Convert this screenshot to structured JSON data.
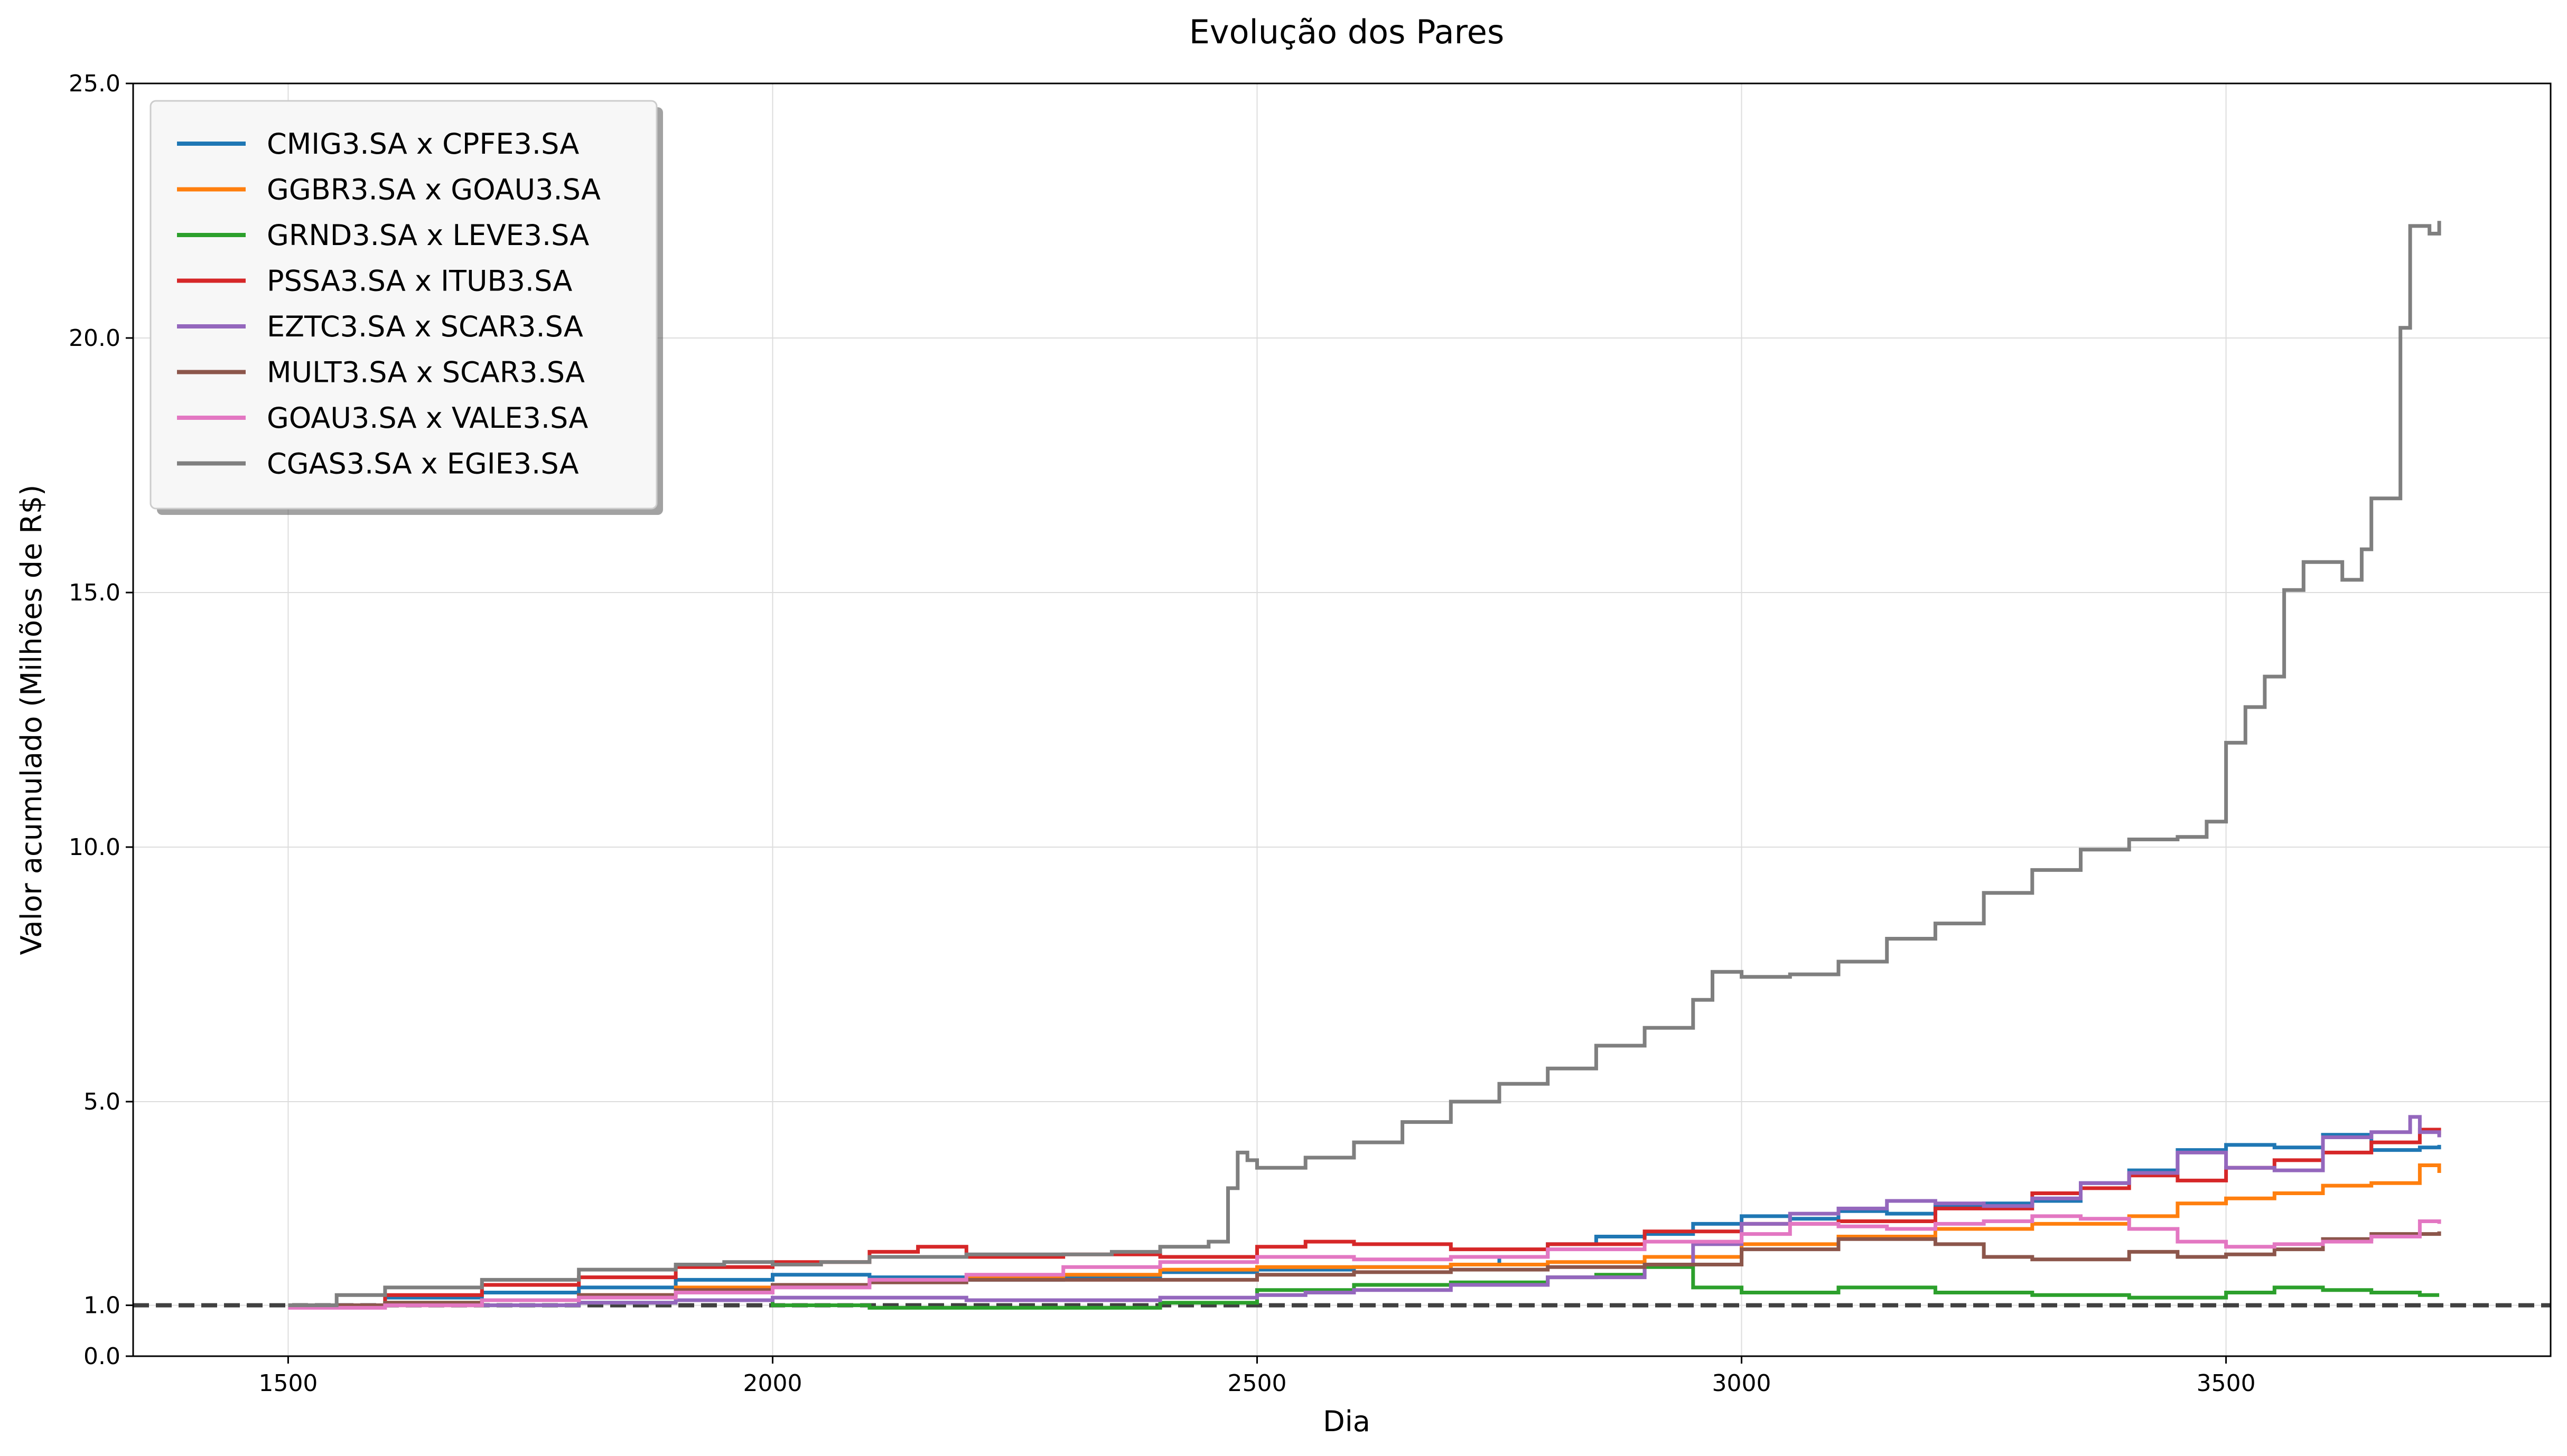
{
  "chart_data": {
    "type": "line",
    "title": "Evolução dos Pares",
    "xlabel": "Dia",
    "ylabel": "Valor acumulado (Milhões de R$)",
    "xlim": [
      1340,
      3835
    ],
    "ylim": [
      0,
      25
    ],
    "xticks": [
      1500,
      2000,
      2500,
      3000,
      3500
    ],
    "xtick_labels": [
      "1500",
      "2000",
      "2500",
      "3000",
      "3500"
    ],
    "yticks": [
      0,
      1,
      5,
      10,
      15,
      20,
      25
    ],
    "ytick_labels": [
      "0.0",
      "1.0",
      "5.0",
      "10.0",
      "15.0",
      "20.0",
      "25.0"
    ],
    "grid": true,
    "legend_position": "top-left",
    "reference_line": {
      "y": 1.0,
      "style": "dashed",
      "color": "#404040"
    },
    "series": [
      {
        "name": "CMIG3.SA x CPFE3.SA",
        "color": "#1f77b4",
        "x": [
          1500,
          1600,
          1700,
          1800,
          1900,
          2000,
          2100,
          2200,
          2300,
          2400,
          2500,
          2600,
          2700,
          2750,
          2800,
          2850,
          2900,
          2950,
          3000,
          3050,
          3100,
          3150,
          3200,
          3250,
          3300,
          3350,
          3400,
          3450,
          3500,
          3550,
          3600,
          3650,
          3700,
          3720
        ],
        "y": [
          1.0,
          1.15,
          1.25,
          1.35,
          1.5,
          1.6,
          1.55,
          1.5,
          1.55,
          1.65,
          1.7,
          1.75,
          1.8,
          1.95,
          2.2,
          2.35,
          2.4,
          2.6,
          2.75,
          2.7,
          2.85,
          2.8,
          2.95,
          3.0,
          3.05,
          3.4,
          3.65,
          4.05,
          4.15,
          4.1,
          4.35,
          4.05,
          4.1,
          4.15
        ]
      },
      {
        "name": "GGBR3.SA x GOAU3.SA",
        "color": "#ff7f0e",
        "x": [
          1500,
          1600,
          1700,
          1800,
          1900,
          2000,
          2100,
          2200,
          2300,
          2400,
          2500,
          2600,
          2700,
          2800,
          2900,
          3000,
          3100,
          3200,
          3300,
          3400,
          3450,
          3500,
          3550,
          3600,
          3650,
          3700,
          3720
        ],
        "y": [
          1.0,
          1.0,
          1.1,
          1.2,
          1.35,
          1.4,
          1.5,
          1.55,
          1.6,
          1.7,
          1.75,
          1.75,
          1.8,
          1.85,
          1.95,
          2.2,
          2.35,
          2.5,
          2.6,
          2.75,
          3.0,
          3.1,
          3.2,
          3.35,
          3.4,
          3.75,
          3.6
        ]
      },
      {
        "name": "GRND3.SA x LEVE3.SA",
        "color": "#2ca02c",
        "x": [
          1500,
          1600,
          1700,
          1800,
          1900,
          2000,
          2100,
          2200,
          2300,
          2400,
          2500,
          2600,
          2700,
          2800,
          2850,
          2900,
          2950,
          3000,
          3100,
          3200,
          3300,
          3400,
          3500,
          3550,
          3600,
          3650,
          3700,
          3720
        ],
        "y": [
          1.0,
          1.05,
          1.0,
          1.05,
          1.1,
          1.0,
          0.95,
          0.95,
          0.95,
          1.05,
          1.3,
          1.4,
          1.45,
          1.55,
          1.6,
          1.75,
          1.35,
          1.25,
          1.35,
          1.25,
          1.2,
          1.15,
          1.25,
          1.35,
          1.3,
          1.25,
          1.2,
          1.2
        ]
      },
      {
        "name": "PSSA3.SA x ITUB3.SA",
        "color": "#d62728",
        "x": [
          1500,
          1600,
          1700,
          1800,
          1900,
          2000,
          2100,
          2150,
          2200,
          2300,
          2400,
          2500,
          2550,
          2600,
          2700,
          2800,
          2900,
          3000,
          3100,
          3200,
          3300,
          3350,
          3400,
          3450,
          3500,
          3550,
          3600,
          3650,
          3700,
          3720
        ],
        "y": [
          1.0,
          1.2,
          1.4,
          1.55,
          1.75,
          1.85,
          2.05,
          2.15,
          1.95,
          2.0,
          1.95,
          2.15,
          2.25,
          2.2,
          2.1,
          2.2,
          2.45,
          2.6,
          2.65,
          2.9,
          3.2,
          3.3,
          3.55,
          3.45,
          3.7,
          3.85,
          4.0,
          4.2,
          4.45,
          4.35
        ]
      },
      {
        "name": "EZTC3.SA x SCAR3.SA",
        "color": "#9467bd",
        "x": [
          1500,
          1600,
          1700,
          1800,
          1900,
          2000,
          2100,
          2200,
          2300,
          2400,
          2500,
          2550,
          2600,
          2700,
          2800,
          2900,
          2950,
          3000,
          3050,
          3100,
          3150,
          3200,
          3250,
          3300,
          3350,
          3400,
          3450,
          3500,
          3550,
          3600,
          3650,
          3690,
          3700,
          3720
        ],
        "y": [
          1.0,
          1.0,
          1.0,
          1.05,
          1.1,
          1.15,
          1.15,
          1.1,
          1.1,
          1.15,
          1.2,
          1.25,
          1.3,
          1.4,
          1.55,
          1.8,
          2.2,
          2.6,
          2.8,
          2.9,
          3.05,
          3.0,
          2.95,
          3.1,
          3.4,
          3.6,
          4.0,
          3.7,
          3.65,
          4.3,
          4.4,
          4.7,
          4.4,
          4.3
        ]
      },
      {
        "name": "MULT3.SA x SCAR3.SA",
        "color": "#8c564b",
        "x": [
          1500,
          1600,
          1700,
          1800,
          1900,
          2000,
          2100,
          2200,
          2300,
          2400,
          2500,
          2600,
          2700,
          2800,
          2900,
          3000,
          3100,
          3200,
          3250,
          3300,
          3400,
          3450,
          3500,
          3550,
          3600,
          3650,
          3700,
          3720
        ],
        "y": [
          1.0,
          1.05,
          1.1,
          1.2,
          1.3,
          1.4,
          1.45,
          1.5,
          1.5,
          1.5,
          1.6,
          1.65,
          1.7,
          1.75,
          1.8,
          2.1,
          2.3,
          2.2,
          1.95,
          1.9,
          2.05,
          1.95,
          2.0,
          2.1,
          2.3,
          2.4,
          2.4,
          2.45
        ]
      },
      {
        "name": "GOAU3.SA x VALE3.SA",
        "color": "#e377c2",
        "x": [
          1500,
          1600,
          1700,
          1800,
          1900,
          2000,
          2100,
          2200,
          2300,
          2400,
          2500,
          2600,
          2700,
          2800,
          2900,
          3000,
          3050,
          3100,
          3150,
          3200,
          3250,
          3300,
          3350,
          3400,
          3450,
          3500,
          3550,
          3600,
          3650,
          3700,
          3720
        ],
        "y": [
          0.95,
          1.0,
          1.1,
          1.15,
          1.25,
          1.35,
          1.5,
          1.6,
          1.75,
          1.85,
          1.95,
          1.9,
          1.95,
          2.1,
          2.25,
          2.4,
          2.6,
          2.55,
          2.5,
          2.6,
          2.65,
          2.75,
          2.7,
          2.5,
          2.25,
          2.15,
          2.2,
          2.25,
          2.35,
          2.65,
          2.6
        ]
      },
      {
        "name": "CGAS3.SA x EGIE3.SA",
        "color": "#7f7f7f",
        "x": [
          1500,
          1550,
          1600,
          1700,
          1800,
          1900,
          1950,
          2000,
          2050,
          2100,
          2200,
          2300,
          2350,
          2400,
          2450,
          2470,
          2480,
          2490,
          2500,
          2550,
          2600,
          2650,
          2700,
          2750,
          2800,
          2850,
          2900,
          2950,
          2970,
          3000,
          3050,
          3100,
          3150,
          3200,
          3250,
          3300,
          3350,
          3400,
          3450,
          3480,
          3500,
          3520,
          3540,
          3560,
          3580,
          3600,
          3620,
          3640,
          3650,
          3660,
          3680,
          3690,
          3700,
          3710,
          3720
        ],
        "y": [
          1.0,
          1.2,
          1.35,
          1.5,
          1.7,
          1.8,
          1.85,
          1.8,
          1.85,
          1.95,
          2.0,
          2.0,
          2.05,
          2.15,
          2.25,
          3.3,
          4.0,
          3.85,
          3.7,
          3.9,
          4.2,
          4.6,
          5.0,
          5.35,
          5.65,
          6.1,
          6.45,
          7.0,
          7.55,
          7.45,
          7.5,
          7.75,
          8.2,
          8.5,
          9.1,
          9.55,
          9.95,
          10.15,
          10.2,
          10.5,
          12.05,
          12.75,
          13.35,
          15.05,
          15.6,
          15.6,
          15.25,
          15.85,
          16.85,
          16.85,
          20.2,
          22.2,
          22.2,
          22.05,
          22.3
        ]
      }
    ]
  }
}
